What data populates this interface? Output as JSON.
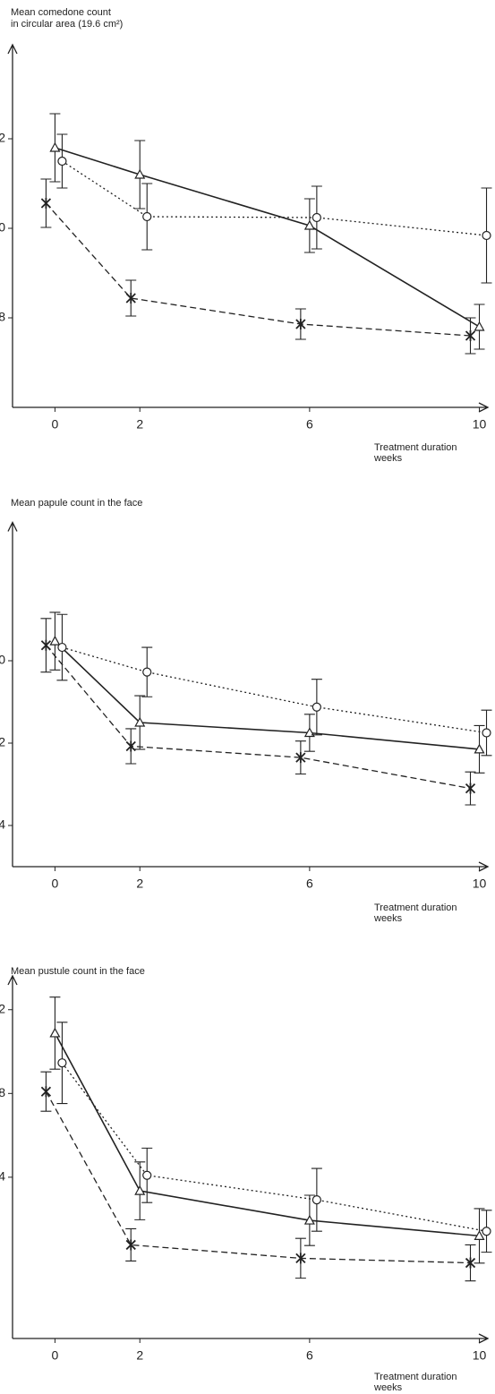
{
  "chart_data": [
    {
      "type": "line",
      "title": [
        "Mean comedone count",
        "in circular area (19.6 cm²)"
      ],
      "xlabel": [
        "Treatment duration",
        "weeks"
      ],
      "x": [
        0,
        2,
        6,
        10
      ],
      "xlim": [
        -1,
        10.2
      ],
      "xticks": [
        0,
        2,
        6,
        10
      ],
      "ylim": [
        6,
        14
      ],
      "yticks": [
        12,
        10,
        8
      ],
      "series": [
        {
          "color": "#222",
          "line_style": "solid",
          "marker": "triangle",
          "values": [
            11.8,
            11.2,
            10.06,
            7.8
          ],
          "errors": [
            0.76,
            0.76,
            0.6,
            0.5
          ]
        },
        {
          "color": "#222",
          "line_style": "dotted",
          "marker": "circle",
          "values": [
            11.5,
            10.26,
            10.24,
            9.84
          ],
          "errors": [
            0.6,
            0.74,
            0.7,
            1.06
          ]
        },
        {
          "color": "#222",
          "line_style": "dashed",
          "marker": "star",
          "values": [
            10.56,
            8.44,
            7.86,
            7.6
          ],
          "errors": [
            0.54,
            0.4,
            0.34,
            0.4
          ]
        }
      ]
    },
    {
      "type": "line",
      "title": [
        "Mean papule count in the face"
      ],
      "xlabel": [
        "Treatment duration",
        "weeks"
      ],
      "x": [
        0,
        2,
        6,
        10
      ],
      "xlim": [
        -1,
        10.2
      ],
      "xticks": [
        0,
        2,
        6,
        10
      ],
      "ylim": [
        0,
        33
      ],
      "yticks": [
        20,
        12,
        4
      ],
      "series": [
        {
          "color": "#222",
          "line_style": "solid",
          "marker": "triangle",
          "values": [
            21.9,
            14,
            13,
            11.4
          ],
          "errors": [
            2.8,
            2.6,
            1.8,
            2.3
          ]
        },
        {
          "color": "#222",
          "line_style": "dotted",
          "marker": "circle",
          "values": [
            21.3,
            18.9,
            15.5,
            13
          ],
          "errors": [
            3.2,
            2.4,
            2.7,
            2.2
          ]
        },
        {
          "color": "#222",
          "line_style": "dashed",
          "marker": "star",
          "values": [
            21.5,
            11.7,
            10.6,
            7.6
          ],
          "errors": [
            2.6,
            1.7,
            1.6,
            1.6
          ]
        }
      ]
    },
    {
      "type": "line",
      "title": [
        "Mean pustule count in the face"
      ],
      "xlabel": [
        "Treatment duration",
        "weeks"
      ],
      "x": [
        0,
        2,
        6,
        10
      ],
      "xlim": [
        -1,
        10.2
      ],
      "xticks": [
        0,
        2,
        6,
        10
      ],
      "ylim": [
        -3.7,
        13.4
      ],
      "yticks": [
        12,
        8,
        4
      ],
      "series": [
        {
          "color": "#222",
          "line_style": "solid",
          "marker": "triangle",
          "values": [
            10.88,
            3.35,
            1.94,
            1.2
          ],
          "errors": [
            1.72,
            1.38,
            1.2,
            1.3
          ]
        },
        {
          "color": "#222",
          "line_style": "dotted",
          "marker": "circle",
          "values": [
            9.46,
            4.09,
            2.92,
            1.42
          ],
          "errors": [
            1.94,
            1.3,
            1.5,
            1.0
          ]
        },
        {
          "color": "#222",
          "line_style": "dashed",
          "marker": "star",
          "values": [
            8.09,
            0.77,
            0.13,
            -0.09
          ],
          "errors": [
            0.94,
            0.77,
            0.95,
            0.86
          ]
        }
      ]
    }
  ]
}
